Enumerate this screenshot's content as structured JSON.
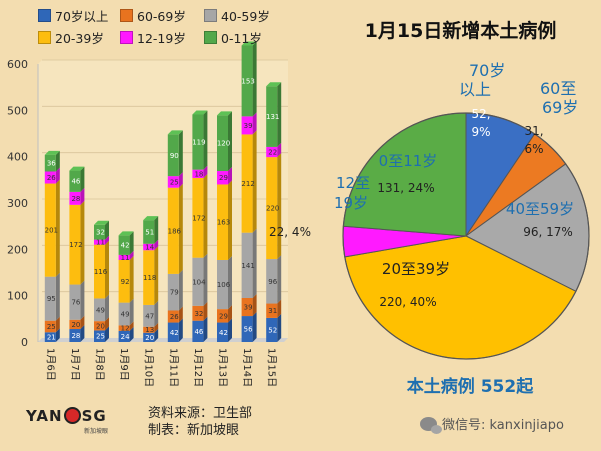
{
  "legend": [
    {
      "label": "70岁以上",
      "color": "#2f67b8"
    },
    {
      "label": "60-69岁",
      "color": "#e8731f"
    },
    {
      "label": "40-59岁",
      "color": "#a6a6a6"
    },
    {
      "label": "20-39岁",
      "color": "#fdbd0f"
    },
    {
      "label": "12-19岁",
      "color": "#ff19ff"
    },
    {
      "label": "0-11岁",
      "color": "#52a84a"
    }
  ],
  "pie_title": "1月15日新增本土病例",
  "total_text": "本土病例 552起",
  "footer": {
    "logo_left": "YAN",
    "logo_right": "SG",
    "logo_sub": "新加坡眼",
    "source_line": "资料来源：卫生部",
    "maker_line": "制表：新加坡眼",
    "wechat": "微信号: kanxinjiapo"
  },
  "chart_data": [
    {
      "type": "bar",
      "stacked": true,
      "categories": [
        "1月6日",
        "1月7日",
        "1月8日",
        "1月9日",
        "1月10日",
        "1月11日",
        "1月12日",
        "1月13日",
        "1月14日",
        "1月15日"
      ],
      "ylim": [
        0,
        600
      ],
      "yticks": [
        0,
        100,
        200,
        300,
        400,
        500,
        600
      ],
      "series": [
        {
          "name": "70岁以上",
          "color": "#2f67b8",
          "values": [
            21,
            28,
            25,
            24,
            20,
            42,
            46,
            42,
            56,
            52
          ]
        },
        {
          "name": "60-69岁",
          "color": "#e8731f",
          "values": [
            25,
            20,
            20,
            12,
            13,
            26,
            32,
            29,
            39,
            31
          ]
        },
        {
          "name": "40-59岁",
          "color": "#a6a6a6",
          "values": [
            95,
            76,
            49,
            49,
            47,
            79,
            104,
            106,
            141,
            96
          ]
        },
        {
          "name": "20-39岁",
          "color": "#fdbd0f",
          "values": [
            201,
            172,
            116,
            92,
            118,
            186,
            172,
            163,
            212,
            220
          ]
        },
        {
          "name": "12-19岁",
          "color": "#ff19ff",
          "values": [
            26,
            28,
            11,
            11,
            14,
            25,
            18,
            29,
            39,
            22
          ]
        },
        {
          "name": "0-11岁",
          "color": "#52a84a",
          "values": [
            36,
            46,
            32,
            42,
            51,
            90,
            119,
            120,
            153,
            131
          ]
        }
      ]
    },
    {
      "type": "pie",
      "title": "1月15日新增本土病例",
      "slices": [
        {
          "label": "70岁以上",
          "text": "70岁以上",
          "value": 52,
          "percent": "9%",
          "color": "#3a6fc4"
        },
        {
          "label": "60至69岁",
          "text": "60至69岁",
          "value": 31,
          "percent": "6%",
          "color": "#ec7a22"
        },
        {
          "label": "40至59岁",
          "text": "40至59岁",
          "value": 96,
          "percent": "17%",
          "color": "#a9a9a9"
        },
        {
          "label": "20至39岁",
          "text": "20至39岁",
          "value": 220,
          "percent": "40%",
          "color": "#ffc000"
        },
        {
          "label": "12至19岁",
          "text": "12至19岁",
          "value": 22,
          "percent": "4%",
          "color": "#ff1aff"
        },
        {
          "label": "0至11岁",
          "text": "0至11岁",
          "value": 131,
          "percent": "24%",
          "color": "#5aac46"
        }
      ]
    }
  ]
}
